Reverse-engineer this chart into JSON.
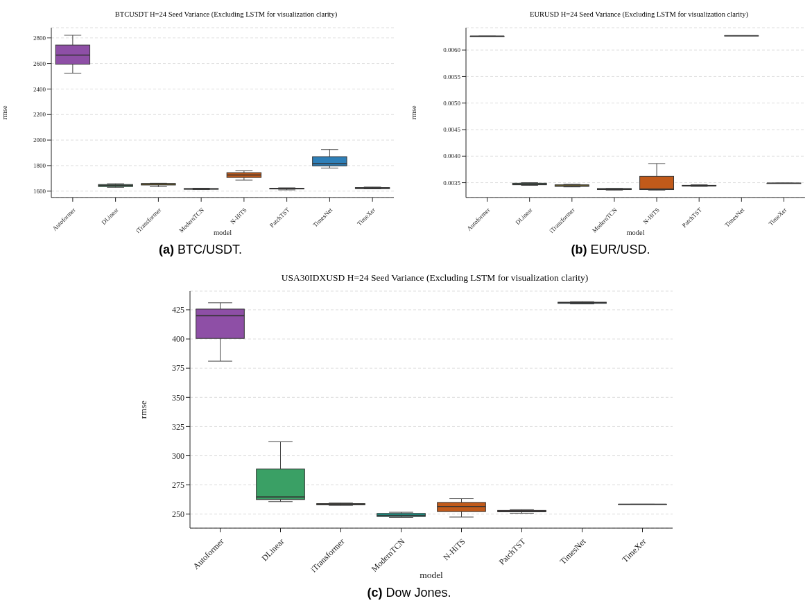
{
  "chart_data": [
    {
      "type": "box",
      "title": "BTCUSDT H=24 Seed Variance (Excluding LSTM for visualization clarity)",
      "xlabel": "model",
      "ylabel": "rmse",
      "categories": [
        "Autoformer",
        "DLinear",
        "iTransformer",
        "ModernTCN",
        "N-HiTS",
        "PatchTST",
        "TimesNet",
        "TimeXer"
      ],
      "boxes": [
        {
          "low": 2524,
          "q1": 2594,
          "median": 2666,
          "q3": 2744,
          "high": 2821
        },
        {
          "low": 1630,
          "q1": 1636,
          "median": 1645,
          "q3": 1652,
          "high": 1658
        },
        {
          "low": 1635,
          "q1": 1648,
          "median": 1655,
          "q3": 1660,
          "high": 1662
        },
        {
          "low": 1613,
          "q1": 1615,
          "median": 1618,
          "q3": 1620,
          "high": 1623
        },
        {
          "low": 1686,
          "q1": 1707,
          "median": 1726,
          "q3": 1745,
          "high": 1759
        },
        {
          "low": 1610,
          "q1": 1617,
          "median": 1620,
          "q3": 1623,
          "high": 1626
        },
        {
          "low": 1781,
          "q1": 1798,
          "median": 1814,
          "q3": 1870,
          "high": 1926
        },
        {
          "low": 1618,
          "q1": 1620,
          "median": 1623,
          "q3": 1628,
          "high": 1632
        }
      ],
      "colors": [
        "#8e4fa6",
        "#3aa065",
        "#e3b505",
        "#1a9e8f",
        "#c15a1a",
        "#b03a48",
        "#2e7fb8",
        "#6b6b6b"
      ],
      "ylim": [
        1550,
        2880
      ],
      "yticks": [
        1600,
        1800,
        2000,
        2200,
        2400,
        2600,
        2800
      ],
      "grid": "y",
      "annotations": [
        "(a) BTC/USDT."
      ]
    },
    {
      "type": "box",
      "title": "EURUSD H=24 Seed Variance (Excluding LSTM for visualization clarity)",
      "xlabel": "model",
      "ylabel": "rmse",
      "categories": [
        "Autoformer",
        "DLinear",
        "iTransformer",
        "ModernTCN",
        "N-HiTS",
        "PatchTST",
        "TimesNet",
        "TimeXer"
      ],
      "boxes": [
        {
          "low": 0.00626,
          "q1": 0.00626,
          "median": 0.00626,
          "q3": 0.00626,
          "high": 0.00626
        },
        {
          "low": 0.00345,
          "q1": 0.00346,
          "median": 0.00347,
          "q3": 0.00349,
          "high": 0.0035
        },
        {
          "low": 0.00342,
          "q1": 0.00343,
          "median": 0.00344,
          "q3": 0.00346,
          "high": 0.00347
        },
        {
          "low": 0.00336,
          "q1": 0.00337,
          "median": 0.00338,
          "q3": 0.00339,
          "high": 0.00339
        },
        {
          "low": 0.00336,
          "q1": 0.00337,
          "median": 0.00338,
          "q3": 0.00362,
          "high": 0.00386
        },
        {
          "low": 0.00343,
          "q1": 0.00344,
          "median": 0.00344,
          "q3": 0.00345,
          "high": 0.00346
        },
        {
          "low": 0.00627,
          "q1": 0.00627,
          "median": 0.00627,
          "q3": 0.00627,
          "high": 0.00627
        },
        {
          "low": 0.00349,
          "q1": 0.00349,
          "median": 0.00349,
          "q3": 0.00349,
          "high": 0.00349
        }
      ],
      "colors": [
        "#8e4fa6",
        "#3aa065",
        "#a08a2a",
        "#1a9e8f",
        "#c15a1a",
        "#b03a48",
        "#2e7fb8",
        "#6b6b6b"
      ],
      "ylim": [
        0.00322,
        0.00642
      ],
      "yticks": [
        {
          "value": 0.0035,
          "label": "0.0035"
        },
        {
          "value": 0.004,
          "label": "0.0040"
        },
        {
          "value": 0.0045,
          "label": "0.0045"
        },
        {
          "value": 0.005,
          "label": "0.0050"
        },
        {
          "value": 0.0055,
          "label": "0.0055"
        },
        {
          "value": 0.006,
          "label": "0.0060"
        }
      ],
      "grid": "y",
      "annotations": [
        "(b) EUR/USD."
      ]
    },
    {
      "type": "box",
      "title": "USA30IDXUSD H=24 Seed Variance (Excluding LSTM for visualization clarity)",
      "xlabel": "model",
      "ylabel": "rmse",
      "categories": [
        "Autoformer",
        "DLinear",
        "iTransformer",
        "ModernTCN",
        "N-HiTS",
        "PatchTST",
        "TimesNet",
        "TimeXer"
      ],
      "boxes": [
        {
          "low": 381,
          "q1": 400.5,
          "median": 420,
          "q3": 425.6,
          "high": 431
        },
        {
          "low": 260.7,
          "q1": 262.5,
          "median": 264.7,
          "q3": 288.6,
          "high": 312
        },
        {
          "low": 257.5,
          "q1": 258,
          "median": 258.5,
          "q3": 259,
          "high": 259.5
        },
        {
          "low": 247.2,
          "q1": 248,
          "median": 249,
          "q3": 250.6,
          "high": 251.6
        },
        {
          "low": 247.5,
          "q1": 252.2,
          "median": 256.6,
          "q3": 260,
          "high": 263.2
        },
        {
          "low": 250.8,
          "q1": 252,
          "median": 252.6,
          "q3": 253.2,
          "high": 253.8
        },
        {
          "low": 430,
          "q1": 430.5,
          "median": 431,
          "q3": 431.5,
          "high": 432
        },
        {
          "low": 258.5,
          "q1": 258.5,
          "median": 258.5,
          "q3": 258.5,
          "high": 258.5
        }
      ],
      "colors": [
        "#8e4fa6",
        "#3aa065",
        "#a08a2a",
        "#1a9e8f",
        "#c15a1a",
        "#b03a48",
        "#2e7fb8",
        "#6b6b6b"
      ],
      "ylim": [
        238,
        441
      ],
      "yticks": [
        250,
        275,
        300,
        325,
        350,
        375,
        400,
        425
      ],
      "grid": "y",
      "annotations": [
        "(c) Dow Jones."
      ]
    }
  ]
}
